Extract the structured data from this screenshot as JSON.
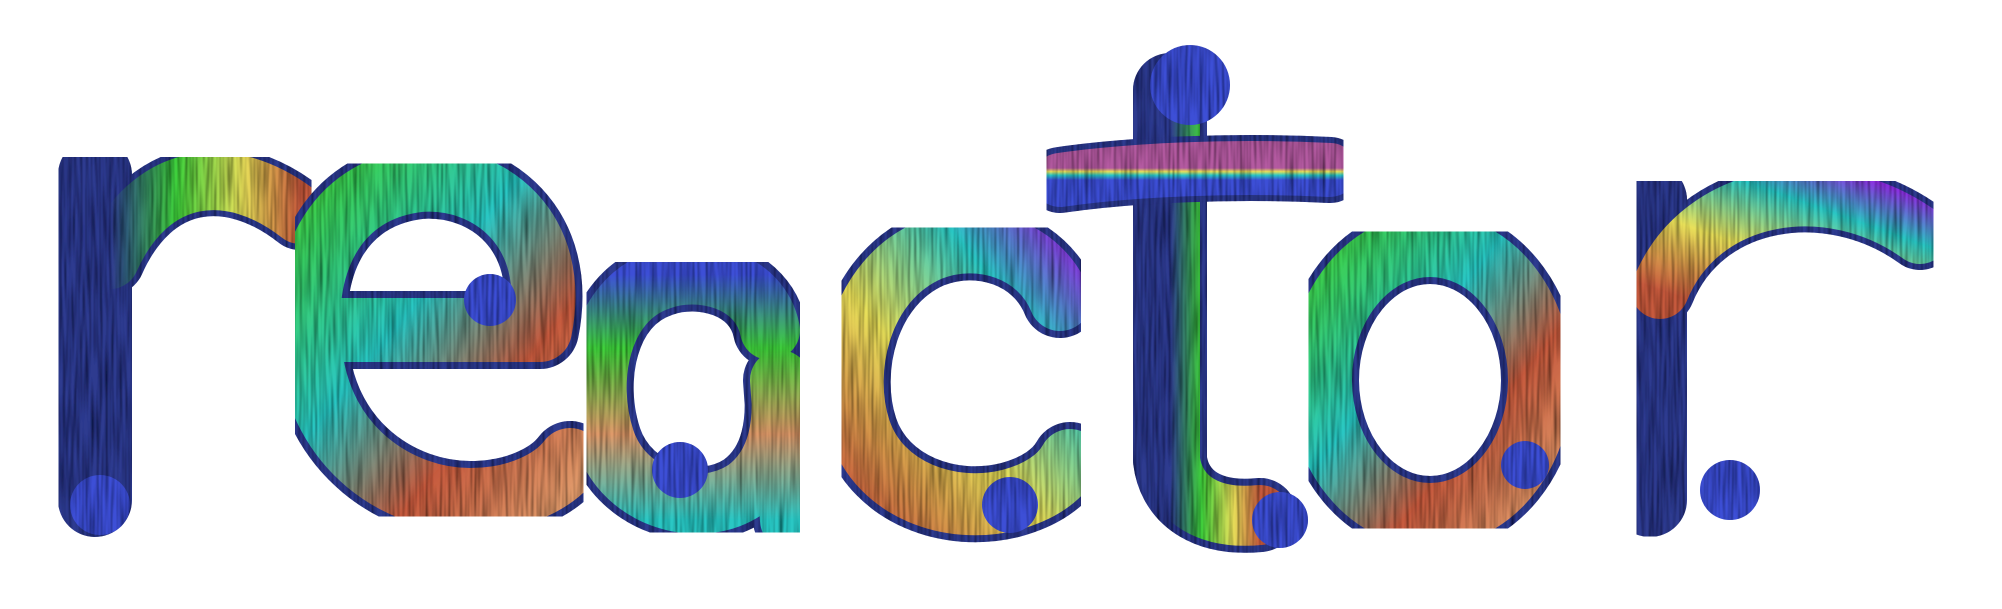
{
  "artwork": {
    "word": "reactor",
    "style": "3d-ribbon-lettering",
    "palette": [
      "#3d4fd6",
      "#e8e05a",
      "#3fd13c",
      "#2bc7c4",
      "#c65a3e",
      "#b35aa0",
      "#8c2fe0",
      "#e09a6a",
      "#2f3a8f",
      "#6fcf6a"
    ],
    "background": "#ffffff"
  }
}
